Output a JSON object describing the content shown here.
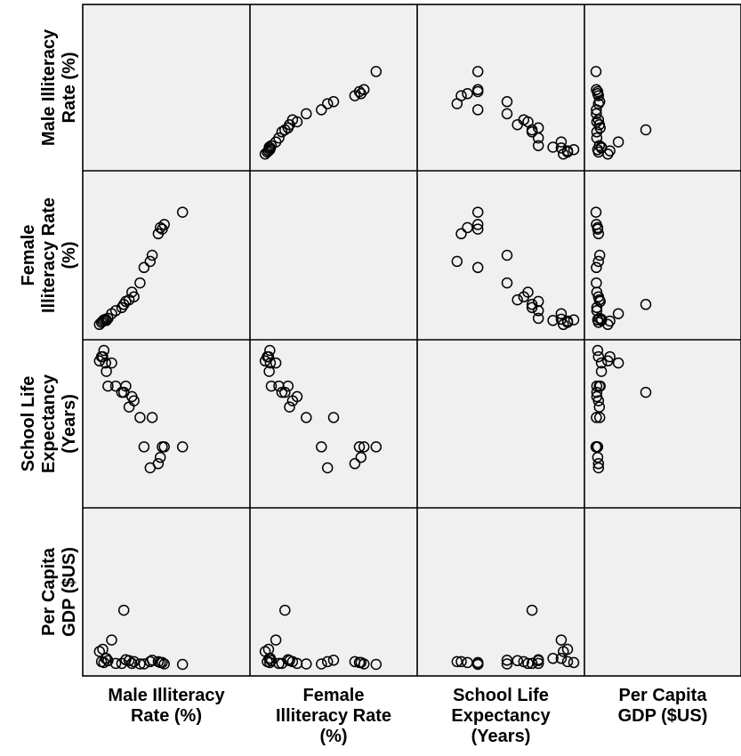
{
  "chart_data": {
    "type": "scatter",
    "subtype": "scatterplot-matrix",
    "title": "",
    "variables": [
      {
        "key": "male_illiteracy",
        "label_lines": [
          "Male Illiteracy",
          "Rate (%)"
        ],
        "range": [
          0,
          36
        ]
      },
      {
        "key": "female_illiteracy",
        "label_lines": [
          "Female",
          "Illiteracy Rate",
          "(%)"
        ],
        "range": [
          0,
          48
        ]
      },
      {
        "key": "school_life_expectancy",
        "label_lines": [
          "School Life",
          "Expectancy",
          "(Years)"
        ],
        "range": [
          5,
          12
        ]
      },
      {
        "key": "per_capita_gdp",
        "label_lines": [
          "Per Capita",
          "GDP ($US)"
        ],
        "range": [
          0,
          3200
        ]
      }
    ],
    "observations": [
      {
        "male_illiteracy": 1.5,
        "female_illiteracy": 1.5,
        "school_life_expectancy": 11.5,
        "per_capita_gdp": 300
      },
      {
        "male_illiteracy": 2.0,
        "female_illiteracy": 2.2,
        "school_life_expectancy": 11.7,
        "per_capita_gdp": 80
      },
      {
        "male_illiteracy": 2.3,
        "female_illiteracy": 2.6,
        "school_life_expectancy": 11.7,
        "per_capita_gdp": 350
      },
      {
        "male_illiteracy": 2.6,
        "female_illiteracy": 3.0,
        "school_life_expectancy": 12.0,
        "per_capita_gdp": 60
      },
      {
        "male_illiteracy": 3.0,
        "female_illiteracy": 3.2,
        "school_life_expectancy": 11.4,
        "per_capita_gdp": 150
      },
      {
        "male_illiteracy": 3.2,
        "female_illiteracy": 2.8,
        "school_life_expectancy": 11.0,
        "per_capita_gdp": 150
      },
      {
        "male_illiteracy": 3.6,
        "female_illiteracy": 3.5,
        "school_life_expectancy": 10.3,
        "per_capita_gdp": 100
      },
      {
        "male_illiteracy": 4.5,
        "female_illiteracy": 5.0,
        "school_life_expectancy": 11.4,
        "per_capita_gdp": 550
      },
      {
        "male_illiteracy": 5.5,
        "female_illiteracy": 6.0,
        "school_life_expectancy": 10.3,
        "per_capita_gdp": 40
      },
      {
        "male_illiteracy": 7.0,
        "female_illiteracy": 7.0,
        "school_life_expectancy": 10.0,
        "per_capita_gdp": 40
      },
      {
        "male_illiteracy": 7.5,
        "female_illiteracy": 8.0,
        "school_life_expectancy": 10.0,
        "per_capita_gdp": 1200
      },
      {
        "male_illiteracy": 8.0,
        "female_illiteracy": 9.0,
        "school_life_expectancy": 10.3,
        "per_capita_gdp": 120
      },
      {
        "male_illiteracy": 8.8,
        "female_illiteracy": 9.5,
        "school_life_expectancy": 9.3,
        "per_capita_gdp": 100
      },
      {
        "male_illiteracy": 9.5,
        "female_illiteracy": 12.0,
        "school_life_expectancy": 9.8,
        "per_capita_gdp": 40
      },
      {
        "male_illiteracy": 10.0,
        "female_illiteracy": 10.5,
        "school_life_expectancy": 9.6,
        "per_capita_gdp": 80
      },
      {
        "male_illiteracy": 11.5,
        "female_illiteracy": 15.0,
        "school_life_expectancy": 8.8,
        "per_capita_gdp": 30
      },
      {
        "male_illiteracy": 12.5,
        "female_illiteracy": 20.0,
        "school_life_expectancy": 7.4,
        "per_capita_gdp": 30
      },
      {
        "male_illiteracy": 14.0,
        "female_illiteracy": 22.0,
        "school_life_expectancy": 6.4,
        "per_capita_gdp": 80
      },
      {
        "male_illiteracy": 14.5,
        "female_illiteracy": 24.0,
        "school_life_expectancy": 8.8,
        "per_capita_gdp": 110
      },
      {
        "male_illiteracy": 16.0,
        "female_illiteracy": 31.0,
        "school_life_expectancy": 6.6,
        "per_capita_gdp": 80
      },
      {
        "male_illiteracy": 16.5,
        "female_illiteracy": 33.0,
        "school_life_expectancy": 6.9,
        "per_capita_gdp": 60
      },
      {
        "male_illiteracy": 17.0,
        "female_illiteracy": 32.5,
        "school_life_expectancy": 7.4,
        "per_capita_gdp": 60
      },
      {
        "male_illiteracy": 17.5,
        "female_illiteracy": 34.0,
        "school_life_expectancy": 7.4,
        "per_capita_gdp": 30
      },
      {
        "male_illiteracy": 22.0,
        "female_illiteracy": 38.0,
        "school_life_expectancy": 7.4,
        "per_capita_gdp": 20
      }
    ],
    "grid": false,
    "legend": "none"
  }
}
